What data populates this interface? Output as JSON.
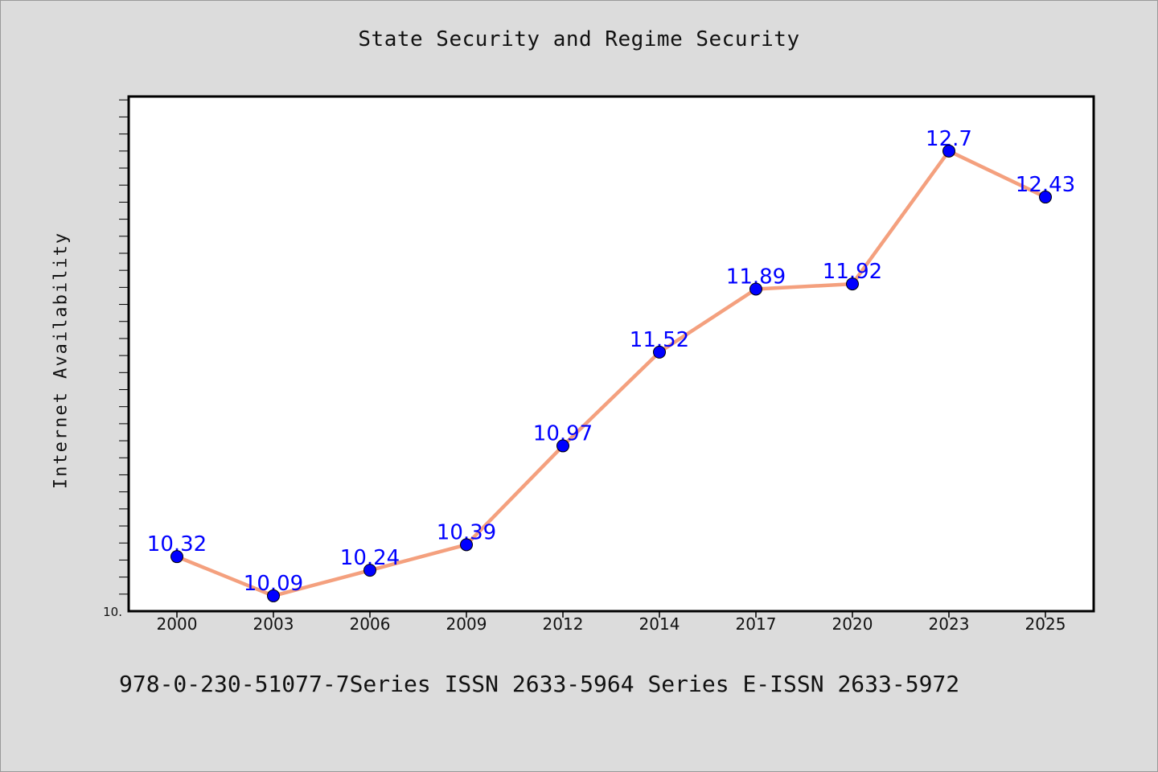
{
  "chart_title": "State Security and Regime Security",
  "footer": "978-0-230-51077-7Series ISSN 2633-5964 Series E-ISSN 2633-5972",
  "chart_data": {
    "type": "line",
    "title": "State Security and Regime Security",
    "xlabel": "",
    "ylabel": "Internet Availability",
    "categories": [
      "2000",
      "2003",
      "2006",
      "2009",
      "2012",
      "2014",
      "2017",
      "2020",
      "2023",
      "2025"
    ],
    "series": [
      {
        "values": [
          10.32,
          10.09,
          10.24,
          10.39,
          10.97,
          11.52,
          11.89,
          11.92,
          12.7,
          12.43
        ],
        "labels": [
          "10.32",
          "10.09",
          "10.24",
          "10.39",
          "10.97",
          "11.52",
          "11.89",
          "11.92",
          "12.7",
          "12.43"
        ]
      }
    ],
    "ylim": [
      10.0,
      13.02
    ],
    "y_min_label": "10.",
    "grid": false,
    "legend": "none",
    "line_color": "#f4a07e",
    "marker_color": "#0000ff",
    "label_color": "#0000ff"
  }
}
